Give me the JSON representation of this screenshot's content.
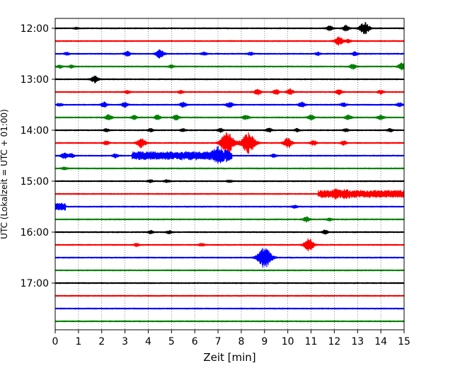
{
  "chart_data": {
    "type": "line",
    "title": "",
    "xlabel": "Zeit  [min]",
    "ylabel": "UTC (Lokalzeit = UTC + 01:00)",
    "xlim": [
      0,
      15
    ],
    "x_ticks": [
      0,
      1,
      2,
      3,
      4,
      5,
      6,
      7,
      8,
      9,
      10,
      11,
      12,
      13,
      14,
      15
    ],
    "x_tick_labels": [
      "0",
      "1",
      "2",
      "3",
      "4",
      "5",
      "6",
      "7",
      "8",
      "9",
      "10",
      "11",
      "12",
      "13",
      "14",
      "15"
    ],
    "y_tick_labels": [
      {
        "label": "12:00",
        "trace_index": 0
      },
      {
        "label": "13:00",
        "trace_index": 4
      },
      {
        "label": "14:00",
        "trace_index": 8
      },
      {
        "label": "15:00",
        "trace_index": 12
      },
      {
        "label": "16:00",
        "trace_index": 16
      },
      {
        "label": "17:00",
        "trace_index": 20
      }
    ],
    "grid": {
      "x": true,
      "style": "dotted"
    },
    "trace_colors": [
      "#000000",
      "#ff0000",
      "#0000ff",
      "#008000"
    ],
    "traces": [
      {
        "start": "12:00",
        "events": [
          [
            0.9,
            0.15
          ],
          [
            11.8,
            0.5
          ],
          [
            12.5,
            0.6
          ],
          [
            13.3,
            1.3
          ]
        ]
      },
      {
        "start": "12:15",
        "events": [
          [
            12.2,
            0.9
          ],
          [
            12.6,
            0.3
          ]
        ]
      },
      {
        "start": "12:30",
        "events": [
          [
            0.5,
            0.3
          ],
          [
            3.1,
            0.5
          ],
          [
            4.5,
            0.9
          ],
          [
            6.4,
            0.3
          ],
          [
            8.4,
            0.3
          ],
          [
            11.3,
            0.3
          ],
          [
            12.9,
            0.4
          ]
        ]
      },
      {
        "start": "12:45",
        "events": [
          [
            0.2,
            0.3
          ],
          [
            0.7,
            0.3
          ],
          [
            5.0,
            0.3
          ],
          [
            12.8,
            0.5
          ],
          [
            14.9,
            0.7
          ]
        ]
      },
      {
        "start": "13:00",
        "events": [
          [
            1.7,
            0.7
          ]
        ]
      },
      {
        "start": "13:15",
        "events": [
          [
            3.1,
            0.3
          ],
          [
            5.4,
            0.3
          ],
          [
            8.7,
            0.6
          ],
          [
            9.5,
            0.5
          ],
          [
            10.1,
            0.6
          ],
          [
            12.2,
            0.5
          ],
          [
            14.0,
            0.4
          ]
        ]
      },
      {
        "start": "13:30",
        "events": [
          [
            0.2,
            0.3
          ],
          [
            2.1,
            0.5
          ],
          [
            3.0,
            0.5
          ],
          [
            5.5,
            0.5
          ],
          [
            7.5,
            0.6
          ],
          [
            10.6,
            0.5
          ],
          [
            12.4,
            0.4
          ],
          [
            14.8,
            0.4
          ]
        ]
      },
      {
        "start": "13:45",
        "events": [
          [
            2.3,
            0.6
          ],
          [
            3.4,
            0.4
          ],
          [
            4.4,
            0.5
          ],
          [
            5.2,
            0.5
          ],
          [
            8.2,
            0.5
          ],
          [
            11.0,
            0.5
          ],
          [
            12.6,
            0.5
          ],
          [
            14.0,
            0.5
          ]
        ]
      },
      {
        "start": "14:00",
        "events": [
          [
            2.2,
            0.3
          ],
          [
            4.1,
            0.3
          ],
          [
            5.5,
            0.3
          ],
          [
            7.1,
            0.4
          ],
          [
            9.2,
            0.4
          ],
          [
            10.4,
            0.3
          ],
          [
            12.5,
            0.3
          ],
          [
            14.4,
            0.3
          ]
        ]
      },
      {
        "start": "14:15",
        "events": [
          [
            2.2,
            0.4
          ],
          [
            3.7,
            1.0
          ],
          [
            7.4,
            2.2
          ],
          [
            8.3,
            2.2
          ],
          [
            10.0,
            1.0
          ],
          [
            11.1,
            0.5
          ],
          [
            12.4,
            0.4
          ]
        ]
      },
      {
        "start": "14:30",
        "events": [
          [
            0.4,
            0.6
          ],
          [
            0.7,
            0.4
          ],
          [
            2.6,
            0.4
          ],
          [
            7.0,
            1.2
          ],
          [
            7.4,
            0.5
          ],
          [
            9.4,
            0.3
          ]
        ],
        "bursts": [
          [
            3.3,
            7.6,
            0.85
          ]
        ]
      },
      {
        "start": "14:45",
        "events": [
          [
            0.4,
            0.3
          ]
        ]
      },
      {
        "start": "15:00",
        "events": [
          [
            4.1,
            0.3
          ],
          [
            4.8,
            0.3
          ],
          [
            7.5,
            0.2
          ]
        ]
      },
      {
        "start": "15:15",
        "events": [
          [
            12.1,
            0.5
          ],
          [
            12.5,
            0.4
          ]
        ],
        "bursts": [
          [
            11.3,
            15.0,
            0.75
          ]
        ]
      },
      {
        "start": "15:30",
        "events": [
          [
            10.3,
            0.3
          ]
        ],
        "bursts": [
          [
            0.0,
            0.45,
            0.8
          ]
        ]
      },
      {
        "start": "15:45",
        "events": [
          [
            10.8,
            0.5
          ],
          [
            11.8,
            0.3
          ]
        ]
      },
      {
        "start": "16:00",
        "events": [
          [
            4.1,
            0.3
          ],
          [
            4.9,
            0.3
          ],
          [
            11.6,
            0.4
          ]
        ]
      },
      {
        "start": "16:15",
        "events": [
          [
            3.5,
            0.3
          ],
          [
            6.3,
            0.3
          ],
          [
            10.9,
            1.3
          ]
        ]
      },
      {
        "start": "16:30",
        "events": [
          [
            9.0,
            2.2
          ]
        ]
      },
      {
        "start": "16:45",
        "events": []
      },
      {
        "start": "17:00",
        "events": []
      },
      {
        "start": "17:15",
        "events": []
      },
      {
        "start": "17:30",
        "events": []
      },
      {
        "start": "17:45",
        "events": []
      }
    ]
  }
}
